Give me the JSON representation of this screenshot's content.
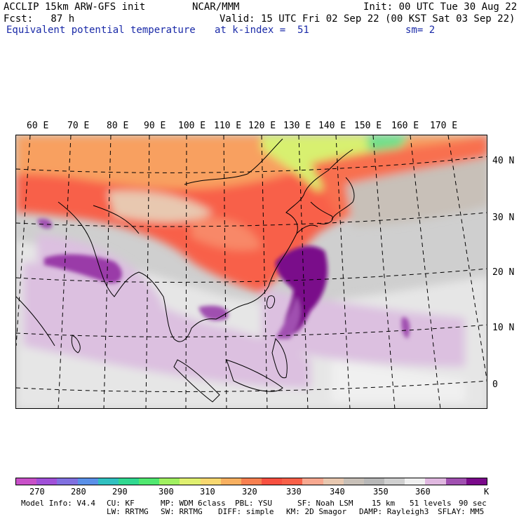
{
  "header": {
    "line1_left": "ACCLIP 15km ARW-GFS init",
    "line1_center": "NCAR/MMM",
    "line1_right": "Init: 00 UTC Tue 30 Aug 22",
    "line2_left": "Fcst:   87 h",
    "line2_right": "Valid: 15 UTC Fri 02 Sep 22 (00 KST Sat 03 Sep 22)",
    "line3_left": "Equivalent potential temperature",
    "line3_center": "at k-index =  51",
    "line3_right": "sm= 2"
  },
  "map": {
    "lon_labels": [
      "60 E",
      "70 E",
      "80 E",
      "90 E",
      "100 E",
      "110 E",
      "120 E",
      "130 E",
      "140 E",
      "150 E",
      "160 E",
      "170 E"
    ],
    "lat_labels": [
      "40 N",
      "30 N",
      "20 N",
      "10 N",
      "0"
    ]
  },
  "colorbar": {
    "colors": [
      "#c850c8",
      "#a050d8",
      "#8070e0",
      "#5a90e8",
      "#30c0c0",
      "#30d890",
      "#50e870",
      "#a0f060",
      "#e0f070",
      "#f8d870",
      "#f8b060",
      "#f88050",
      "#f85040",
      "#f86048",
      "#f8a890",
      "#e8c8b0",
      "#c8c0b8",
      "#b8b8b8",
      "#d0d0d0",
      "#f0f0f0",
      "#e0b8e0",
      "#a050b0",
      "#7a0a8a"
    ],
    "labels": [
      "270",
      "280",
      "290",
      "300",
      "310",
      "320",
      "330",
      "340",
      "350",
      "360"
    ],
    "unit": "K"
  },
  "footer": {
    "line1": [
      "Model Info: V4.4",
      "CU: KF",
      "MP: WDM 6class",
      "PBL: YSU",
      "SF: Noah LSM",
      "15 km",
      "51 levels",
      "90 sec"
    ],
    "line2": [
      "LW: RRTMG",
      "SW: RRTMG",
      "DIFF: simple",
      "KM: 2D Smagor",
      "DAMP: Rayleigh3",
      "SFLAY: MM5"
    ]
  }
}
